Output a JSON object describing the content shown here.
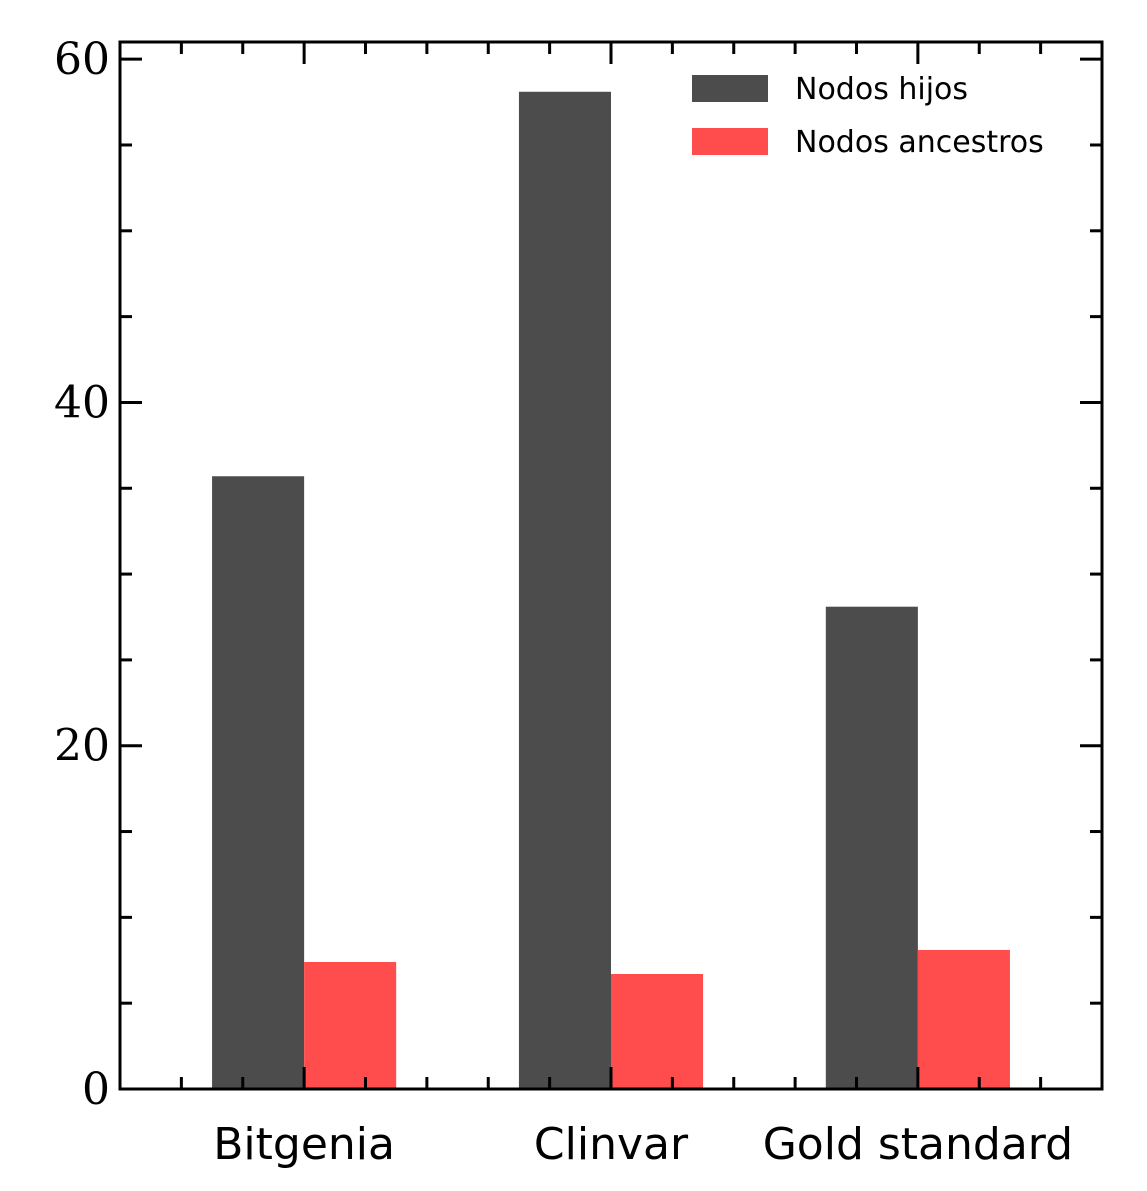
{
  "chart_data": {
    "type": "bar",
    "title": "",
    "xlabel": "",
    "ylabel": "",
    "categories": [
      "Bitgenia",
      "Clinvar",
      "Gold standard"
    ],
    "series": [
      {
        "name": "Nodos hijos",
        "color": "#4c4c4c",
        "values": [
          35.7,
          58.1,
          28.1
        ]
      },
      {
        "name": "Nodos ancestros",
        "color": "#ff4c4c",
        "values": [
          7.4,
          6.7,
          8.1
        ]
      }
    ],
    "ylim": [
      0,
      61
    ],
    "yticks": [
      0,
      20,
      40,
      60
    ],
    "yticks_minor_step": 5,
    "grid": false,
    "legend_position": "top-right"
  }
}
